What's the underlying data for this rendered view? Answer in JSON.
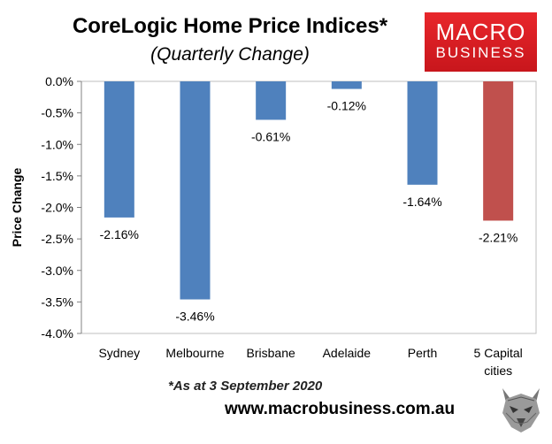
{
  "header": {
    "title": "CoreLogic Home Price Indices*",
    "subtitle": "(Quarterly Change)"
  },
  "logo": {
    "line1": "MACRO",
    "line2": "BUSINESS"
  },
  "footer": {
    "note": "*As at 3 September 2020",
    "url": "www.macrobusiness.com.au"
  },
  "chart_data": {
    "type": "bar",
    "title": "CoreLogic Home Price Indices*",
    "subtitle": "(Quarterly Change)",
    "ylabel": "Price Change",
    "xlabel": "",
    "categories": [
      [
        "Sydney"
      ],
      [
        "Melbourne"
      ],
      [
        "Brisbane"
      ],
      [
        "Adelaide"
      ],
      [
        "Perth"
      ],
      [
        "5 Capital",
        "cities"
      ]
    ],
    "values": [
      -2.16,
      -3.46,
      -0.61,
      -0.12,
      -1.64,
      -2.21
    ],
    "value_labels": [
      "-2.16%",
      "-3.46%",
      "-0.61%",
      "-0.12%",
      "-1.64%",
      "-2.21%"
    ],
    "ylim": [
      -4.0,
      0.0
    ],
    "yticks": [
      0.0,
      -0.5,
      -1.0,
      -1.5,
      -2.0,
      -2.5,
      -3.0,
      -3.5,
      -4.0
    ],
    "ytick_labels": [
      "0.0%",
      "-0.5%",
      "-1.0%",
      "-1.5%",
      "-2.0%",
      "-2.5%",
      "-3.0%",
      "-3.5%",
      "-4.0%"
    ],
    "colors": [
      "#4f81bd",
      "#4f81bd",
      "#4f81bd",
      "#4f81bd",
      "#4f81bd",
      "#c0504d"
    ],
    "grid": false,
    "legend": "none"
  }
}
